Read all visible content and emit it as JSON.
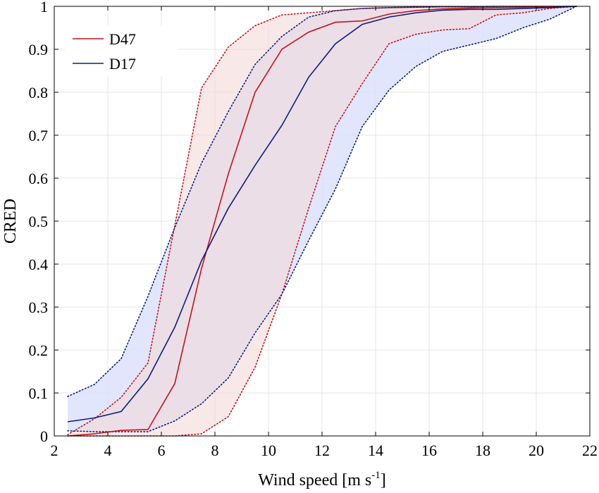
{
  "chart_data": {
    "type": "line",
    "title": "",
    "xlabel": "Wind speed [m s",
    "xlabel_sup": "-1",
    "xlabel_tail": "]",
    "ylabel": "CRED",
    "xlim": [
      2,
      22
    ],
    "ylim": [
      0,
      1
    ],
    "xticks": [
      "2",
      "4",
      "6",
      "8",
      "10",
      "12",
      "14",
      "16",
      "18",
      "20",
      "22"
    ],
    "yticks": [
      "0",
      "0.1",
      "0.2",
      "0.3",
      "0.4",
      "0.5",
      "0.6",
      "0.7",
      "0.8",
      "0.9",
      "1"
    ],
    "grid": true,
    "legend_position": "top-left",
    "series": [
      {
        "name": "D47",
        "color": "#c0141e",
        "fill_color": "#f3d9d9",
        "x": [
          2.5,
          3.5,
          4.5,
          5.5,
          6.5,
          7.5,
          8.5,
          9.5,
          10.5,
          11.5,
          12.5,
          13.5,
          14.5,
          15.5,
          16.5,
          17.5,
          18.5,
          19.5,
          20.5,
          21.5
        ],
        "median": [
          0.0,
          0.005,
          0.013,
          0.015,
          0.122,
          0.39,
          0.61,
          0.8,
          0.9,
          0.94,
          0.963,
          0.966,
          0.982,
          0.99,
          0.994,
          0.996,
          0.997,
          0.998,
          0.999,
          1.0
        ],
        "upper": [
          0.003,
          0.04,
          0.09,
          0.17,
          0.49,
          0.81,
          0.905,
          0.955,
          0.98,
          0.985,
          0.99,
          0.995,
          0.997,
          0.998,
          0.999,
          0.999,
          1.0,
          1.0,
          1.0,
          1.0
        ],
        "lower": [
          0.0,
          0.0,
          0.0,
          0.0,
          0.0,
          0.005,
          0.045,
          0.16,
          0.33,
          0.53,
          0.72,
          0.82,
          0.913,
          0.935,
          0.945,
          0.948,
          0.98,
          0.985,
          0.995,
          1.0
        ]
      },
      {
        "name": "D17",
        "color": "#0b1e7a",
        "fill_color": "#dde2fb",
        "x": [
          2.5,
          3.5,
          4.5,
          5.5,
          6.5,
          7.5,
          8.5,
          9.5,
          10.5,
          11.5,
          12.5,
          13.5,
          14.5,
          15.5,
          16.5,
          17.5,
          18.5,
          19.5,
          20.5,
          21.5
        ],
        "median": [
          0.033,
          0.042,
          0.057,
          0.133,
          0.253,
          0.408,
          0.53,
          0.63,
          0.723,
          0.835,
          0.913,
          0.958,
          0.975,
          0.985,
          0.991,
          0.993,
          0.993,
          0.995,
          0.997,
          1.0
        ],
        "upper": [
          0.092,
          0.12,
          0.18,
          0.325,
          0.485,
          0.635,
          0.755,
          0.865,
          0.93,
          0.975,
          0.99,
          0.995,
          0.997,
          0.998,
          0.999,
          0.999,
          1.0,
          1.0,
          1.0,
          1.0
        ],
        "lower": [
          0.012,
          0.01,
          0.01,
          0.01,
          0.035,
          0.075,
          0.135,
          0.24,
          0.33,
          0.455,
          0.575,
          0.72,
          0.805,
          0.86,
          0.895,
          0.91,
          0.925,
          0.95,
          0.97,
          1.0
        ]
      }
    ]
  }
}
